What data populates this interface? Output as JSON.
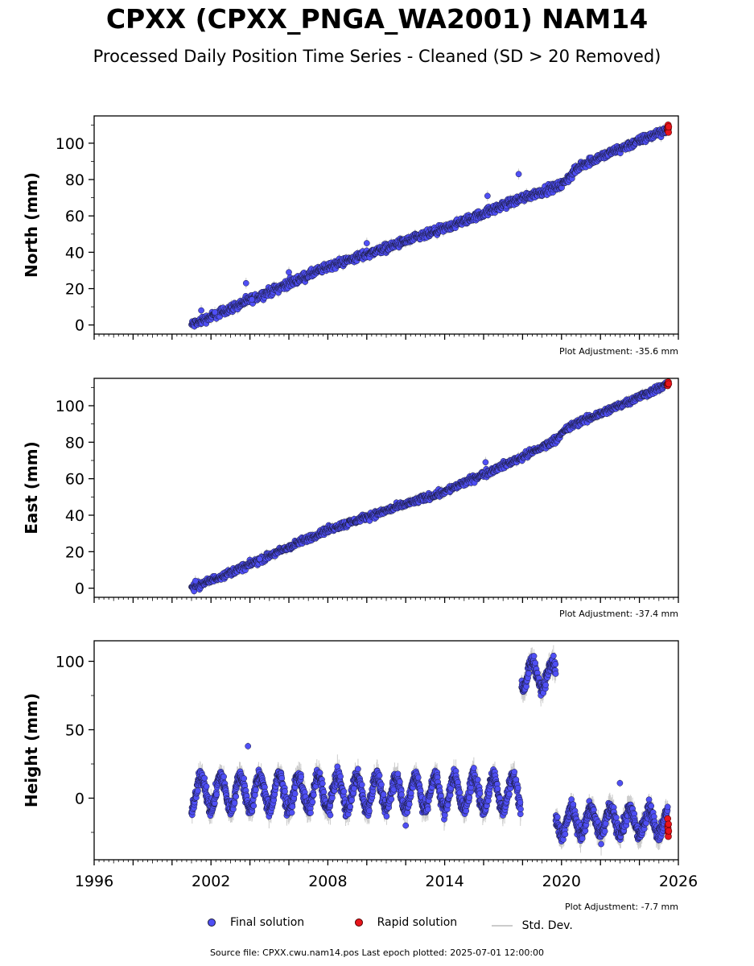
{
  "header": {
    "title": "CPXX (CPXX_PNGA_WA2001) NAM14",
    "subtitle": "Processed Daily Position Time Series - Cleaned (SD > 20 Removed)"
  },
  "footer": {
    "source": "Source file: CPXX.cwu.nam14.pos  Last epoch plotted: 2025-07-01 12:00:00"
  },
  "legend": {
    "final_label": "Final solution",
    "rapid_label": "Rapid solution",
    "std_label": "Std. Dev."
  },
  "colors": {
    "final": "#4f4ff5",
    "final_edge": "#1a1a3a",
    "rapid": "#e8141b",
    "std": "#cccccc"
  },
  "chart_data": [
    {
      "type": "scatter",
      "ylabel": "North (mm)",
      "adjustment": "Plot Adjustment: -35.6 mm",
      "xlim": [
        1996,
        2026
      ],
      "ylim": [
        -5,
        115
      ],
      "yticks": [
        0,
        20,
        40,
        60,
        80,
        100
      ],
      "trend": [
        [
          2001.0,
          0
        ],
        [
          2008.0,
          32
        ],
        [
          2014.0,
          53
        ],
        [
          2018.0,
          70
        ],
        [
          2020.0,
          77
        ],
        [
          2021.0,
          88
        ],
        [
          2025.5,
          108
        ]
      ],
      "scatter_amp": 2.5,
      "outliers": [
        [
          2001.5,
          8
        ],
        [
          2002.2,
          7
        ],
        [
          2003.8,
          23
        ],
        [
          2004.1,
          14
        ],
        [
          2006.0,
          29
        ],
        [
          2010.0,
          45
        ],
        [
          2016.2,
          71
        ],
        [
          2017.8,
          83
        ]
      ],
      "final_end": 2025.45,
      "rapid": {
        "x_start": 2025.45,
        "x_end": 2025.5,
        "values": [
          107,
          108,
          109,
          110,
          108,
          106,
          109
        ]
      }
    },
    {
      "type": "scatter",
      "ylabel": "East (mm)",
      "adjustment": "Plot Adjustment: -37.4 mm",
      "xlim": [
        1996,
        2026
      ],
      "ylim": [
        -5,
        115
      ],
      "yticks": [
        0,
        20,
        40,
        60,
        80,
        100
      ],
      "trend": [
        [
          2001.0,
          0
        ],
        [
          2004.0,
          13
        ],
        [
          2008.0,
          32
        ],
        [
          2014.0,
          53
        ],
        [
          2018.0,
          72
        ],
        [
          2019.5,
          80
        ],
        [
          2020.5,
          89
        ],
        [
          2022.5,
          98
        ],
        [
          2025.5,
          112
        ]
      ],
      "scatter_amp": 2.0,
      "outliers": [
        [
          2001.2,
          4
        ],
        [
          2004.5,
          16
        ],
        [
          2016.1,
          69
        ]
      ],
      "final_end": 2025.45,
      "rapid": {
        "x_start": 2025.45,
        "x_end": 2025.5,
        "values": [
          111,
          112,
          113,
          112
        ]
      }
    },
    {
      "type": "scatter",
      "ylabel": "Height (mm)",
      "adjustment": "Plot Adjustment: -7.7 mm",
      "xlim": [
        1996,
        2026
      ],
      "ylim": [
        -45,
        115
      ],
      "yticks": [
        0,
        50,
        100
      ],
      "xticks": [
        1996,
        2002,
        2008,
        2014,
        2020,
        2026
      ],
      "segments": [
        {
          "x_start": 2001.0,
          "x_end": 2017.9,
          "mean": 4,
          "amp": 12,
          "noise": 7
        },
        {
          "x_start": 2017.95,
          "x_end": 2019.7,
          "mean": 90,
          "amp": 10,
          "noise": 6
        },
        {
          "x_start": 2019.7,
          "x_end": 2025.45,
          "mean": -17,
          "amp": 9,
          "noise": 7
        }
      ],
      "outliers": [
        [
          2003.9,
          38
        ],
        [
          2012.0,
          -20
        ],
        [
          2023.0,
          11
        ]
      ],
      "rapid": {
        "x_start": 2025.45,
        "x_end": 2025.5,
        "values": [
          -15,
          -20,
          -22,
          -25,
          -28,
          -19,
          -24
        ]
      }
    }
  ]
}
